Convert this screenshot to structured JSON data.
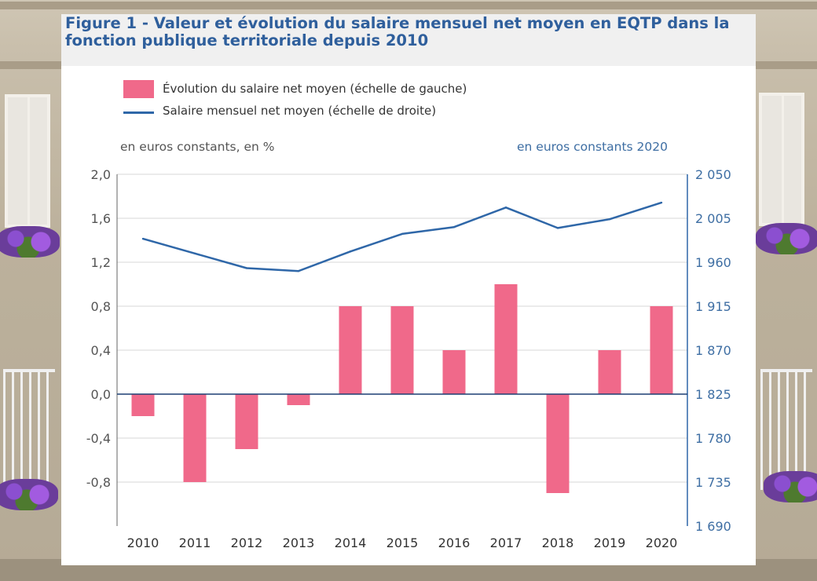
{
  "figure": {
    "title": "Figure 1 - Valeur et évolution du salaire mensuel net moyen en EQTP dans la fonction publique territoriale depuis 2010",
    "left_unit": "en euros constants, en %",
    "right_unit": "en euros constants 2020"
  },
  "legend": {
    "bar_label": "Évolution du salaire net moyen (échelle de gauche)",
    "line_label": "Salaire mensuel net moyen (échelle de droite)"
  },
  "colors": {
    "bar": "#f0698a",
    "line": "#2f67a8",
    "title": "#2f5f9c",
    "left_axis_text": "#555555",
    "right_axis_text": "#3e6ea3",
    "zero_line": "#1d3f73"
  },
  "chart_data": {
    "type": "bar",
    "categories": [
      "2010",
      "2011",
      "2012",
      "2013",
      "2014",
      "2015",
      "2016",
      "2017",
      "2018",
      "2019",
      "2020"
    ],
    "series": [
      {
        "name": "Évolution du salaire net moyen (échelle de gauche)",
        "type": "bar",
        "axis": "left",
        "values": [
          -0.2,
          -0.8,
          -0.5,
          -0.1,
          0.8,
          0.8,
          0.4,
          1.0,
          -0.9,
          0.4,
          0.8
        ]
      },
      {
        "name": "Salaire mensuel net moyen (échelle de droite)",
        "type": "line",
        "axis": "right",
        "values": [
          1984,
          1969,
          1954,
          1951,
          1971,
          1989,
          1996,
          2016,
          1995,
          2004,
          2021
        ]
      }
    ],
    "left_axis": {
      "ylim": [
        -1.2,
        2.0
      ],
      "ticks": [
        2.0,
        1.6,
        1.2,
        0.8,
        0.4,
        0.0,
        -0.4,
        -0.8
      ],
      "tick_labels": [
        "2,0",
        "1,6",
        "1,2",
        "0,8",
        "0,4",
        "0,0",
        "-0,4",
        "-0,8"
      ]
    },
    "right_axis": {
      "ylim": [
        1690,
        2050
      ],
      "ticks": [
        2050,
        2005,
        1960,
        1915,
        1870,
        1825,
        1780,
        1735,
        1690
      ],
      "tick_labels": [
        "2 050",
        "2 005",
        "1 960",
        "1 915",
        "1 870",
        "1 825",
        "1 780",
        "1 735",
        "1 690"
      ]
    },
    "grid": true,
    "legend_position": "top-left"
  }
}
